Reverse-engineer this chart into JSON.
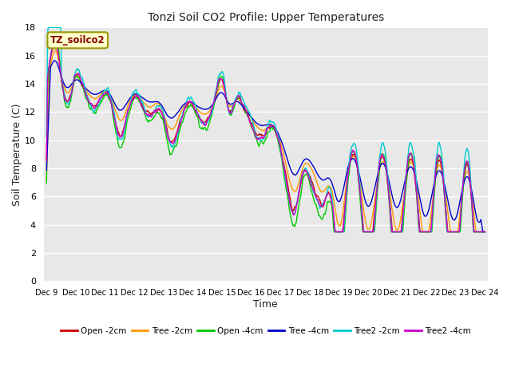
{
  "title": "Tonzi Soil CO2 Profile: Upper Temperatures",
  "xlabel": "Time",
  "ylabel": "Soil Temperature (C)",
  "ylim": [
    0,
    18
  ],
  "yticks": [
    0,
    2,
    4,
    6,
    8,
    10,
    12,
    14,
    16,
    18
  ],
  "xlim": [
    0,
    15
  ],
  "background_color": "#ffffff",
  "plot_bg_color": "#e8e8e8",
  "grid_color": "#ffffff",
  "label_box_text": "TZ_soilco2",
  "label_box_bg": "#ffffcc",
  "label_box_edge": "#999900",
  "label_box_text_color": "#880000",
  "series_colors": {
    "Open -2cm": "#cc0000",
    "Tree -2cm": "#ff9900",
    "Open -4cm": "#00cc00",
    "Tree -4cm": "#0000cc",
    "Tree2 -2cm": "#00cccc",
    "Tree2 -4cm": "#cc00cc"
  },
  "xtick_labels": [
    "Dec 9",
    "Dec 10",
    "Dec 11",
    "Dec 12",
    "Dec 13",
    "Dec 14",
    "Dec 15",
    "Dec 16",
    "Dec 17",
    "Dec 18",
    "Dec 19",
    "Dec 20",
    "Dec 21",
    "Dec 22",
    "Dec 23",
    "Dec 24"
  ],
  "legend_entries": [
    "Open -2cm",
    "Tree -2cm",
    "Open -4cm",
    "Tree -4cm",
    "Tree2 -2cm",
    "Tree2 -4cm"
  ]
}
